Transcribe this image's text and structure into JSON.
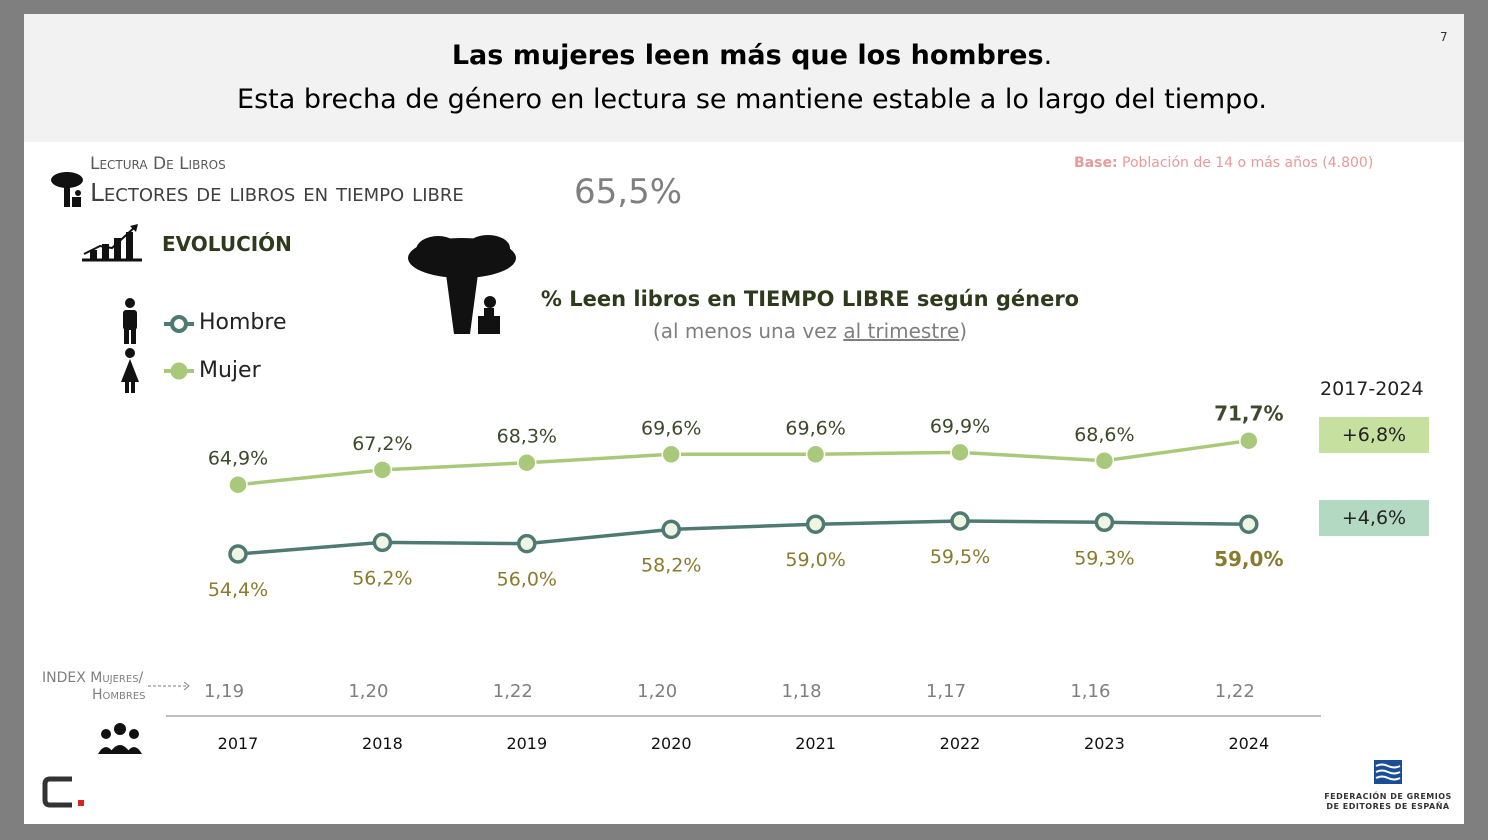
{
  "header": {
    "title_bold": "Las mujeres leen más que los hombres",
    "title_punct": ".",
    "subtitle": "Esta brecha de género en lectura se mantiene estable a lo largo del tiempo.",
    "page_number": "7"
  },
  "section": {
    "kicker": "Lectura De Libros",
    "title": "Lectores de libros en tiempo libre",
    "headline_value": "65,5%",
    "base_label": "Base:",
    "base_text": " Población de 14 o más años (4.800)"
  },
  "evolution_label": "EVOLUCIÓN",
  "legend": {
    "hombre": "Hombre",
    "mujer": "Mujer"
  },
  "summary": {
    "period": "2017-2024",
    "delta_mujer": "+6,8%",
    "delta_hombre": "+4,6%"
  },
  "index": {
    "label_line1": "INDEX Mujeres/",
    "label_line2": "Hombres"
  },
  "footer": {
    "fge_line1": "FEDERACIÓN DE GREMIOS",
    "fge_line2": "DE EDITORES DE ESPAÑA"
  },
  "colors": {
    "mujer": "#a9c97a",
    "hombre": "#4e7a72",
    "label_mujer": "#3d4a2a",
    "label_hombre": "#8a7a2e",
    "index": "#7f7f7f"
  },
  "icons": [
    "tree-reader-icon",
    "growth-chart-icon",
    "man-icon",
    "woman-icon",
    "people-group-icon",
    "arrow-dashed-icon"
  ],
  "chart_data": {
    "type": "line",
    "title": "% Leen libros en TIEMPO LIBRE según género",
    "subtitle_pre": "(al menos una vez ",
    "subtitle_underlined": "al trimestre",
    "subtitle_post": ")",
    "categories": [
      "2017",
      "2018",
      "2019",
      "2020",
      "2021",
      "2022",
      "2023",
      "2024"
    ],
    "ylim": [
      50,
      75
    ],
    "series": [
      {
        "name": "Mujer",
        "values": [
          64.9,
          67.2,
          68.3,
          69.6,
          69.6,
          69.9,
          68.6,
          71.7
        ],
        "labels": [
          "64,9%",
          "67,2%",
          "68,3%",
          "69,6%",
          "69,6%",
          "69,9%",
          "68,6%",
          "71,7%"
        ]
      },
      {
        "name": "Hombre",
        "values": [
          54.4,
          56.2,
          56.0,
          58.2,
          59.0,
          59.5,
          59.3,
          59.0
        ],
        "labels": [
          "54,4%",
          "56,2%",
          "56,0%",
          "58,2%",
          "59,0%",
          "59,5%",
          "59,3%",
          "59,0%"
        ]
      }
    ],
    "index_values": [
      "1,19",
      "1,20",
      "1,22",
      "1,20",
      "1,18",
      "1,17",
      "1,16",
      "1,22"
    ]
  }
}
